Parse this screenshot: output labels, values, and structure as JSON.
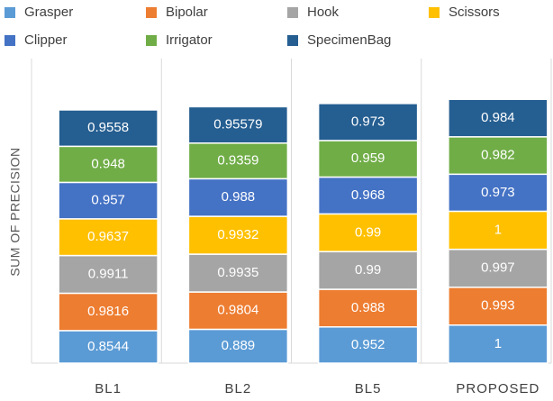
{
  "chart_data": {
    "type": "stacked_bar",
    "y_label": "SUM OF PRECISION",
    "categories": [
      "BL1",
      "BL2",
      "BL5",
      "PROPOSED"
    ],
    "series": [
      {
        "name": "Grasper",
        "color": "#5b9bd5",
        "values": [
          0.8544,
          0.889,
          0.952,
          1
        ]
      },
      {
        "name": "Bipolar",
        "color": "#ed7d31",
        "values": [
          0.9816,
          0.9804,
          0.988,
          0.993
        ]
      },
      {
        "name": "Hook",
        "color": "#a5a5a5",
        "values": [
          0.9911,
          0.9935,
          0.99,
          0.997
        ]
      },
      {
        "name": "Scissors",
        "color": "#ffc000",
        "values": [
          0.9637,
          0.9932,
          0.99,
          1
        ]
      },
      {
        "name": "Clipper",
        "color": "#4472c4",
        "values": [
          0.957,
          0.988,
          0.968,
          0.973
        ]
      },
      {
        "name": "Irrigator",
        "color": "#70ad47",
        "values": [
          0.948,
          0.9359,
          0.959,
          0.982
        ]
      },
      {
        "name": "SpecimenBag",
        "color": "#255e91",
        "values": [
          0.9558,
          0.95579,
          0.973,
          0.984
        ]
      }
    ],
    "ylim": [
      0,
      8
    ]
  }
}
